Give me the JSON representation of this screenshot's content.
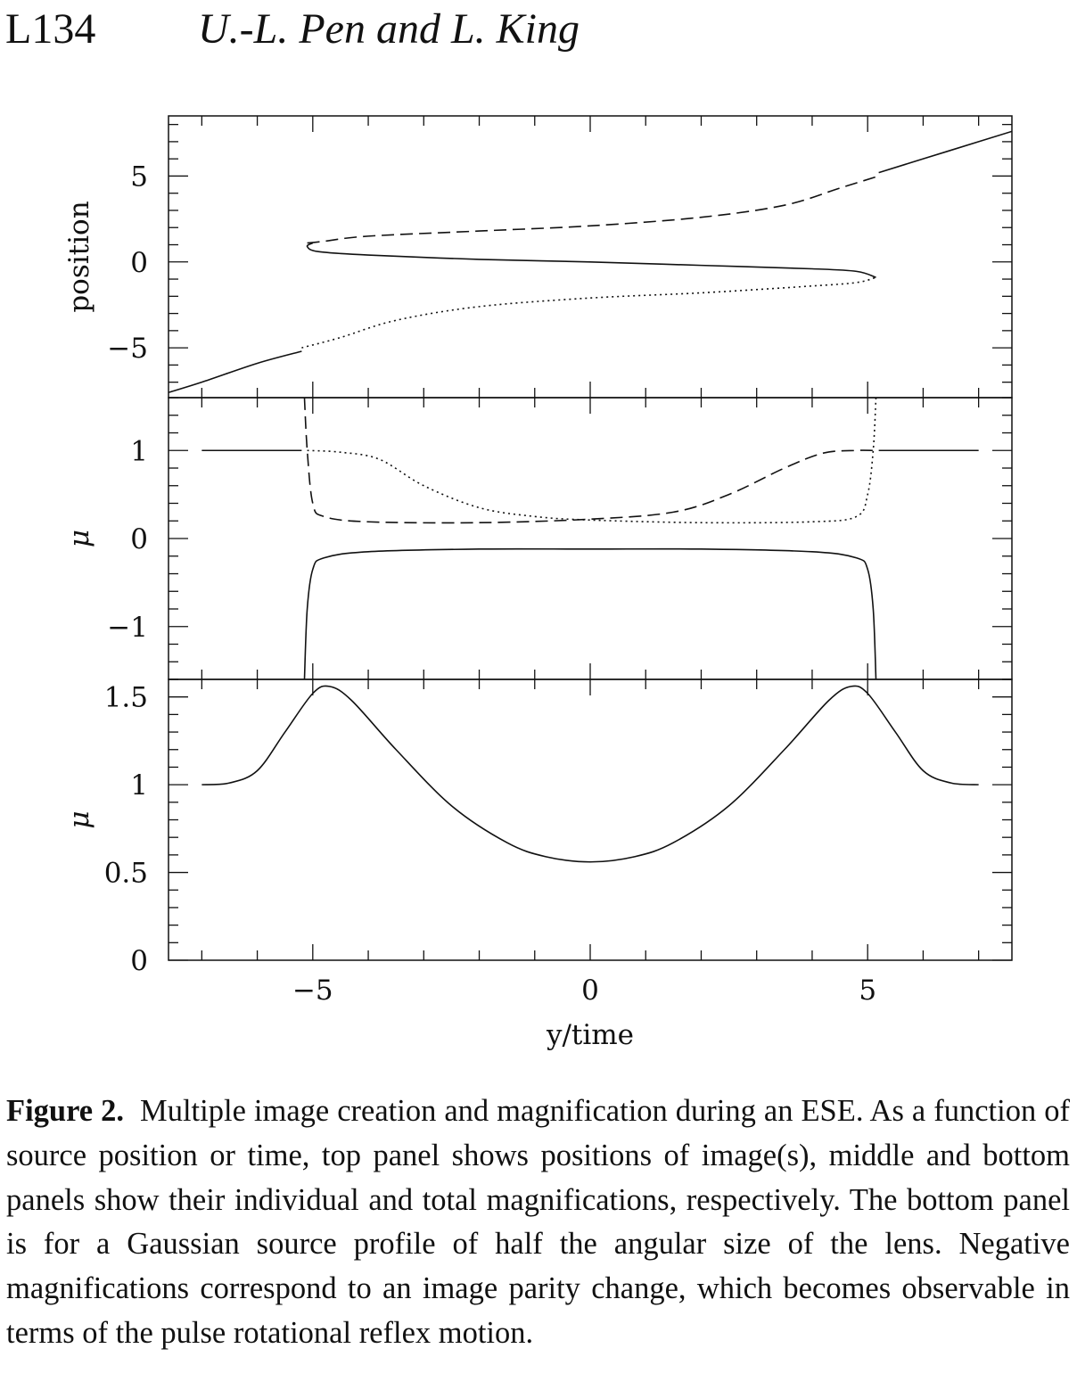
{
  "header": {
    "page_number": "L134",
    "authors": "U.-L. Pen and L. King"
  },
  "caption": {
    "label": "Figure 2.",
    "text": "Multiple image creation and magnification during an ESE. As a function of source position or time, top panel shows positions of image(s), middle and bottom panels show their individual and total magnifications, respectively. The bottom panel is for a Gaussian source profile of half the angular size of the lens. Negative magnifications correspond to an image parity change, which becomes observable in terms of the pulse rotational reflex motion."
  },
  "chart_data": [
    {
      "type": "line",
      "panel": "top",
      "xlabel": "",
      "ylabel": "position",
      "xlim": [
        -7.6,
        7.6
      ],
      "ylim": [
        -7.9,
        8.5
      ],
      "yticks": [
        -5,
        0,
        5
      ],
      "yticklabels": [
        "−5",
        "0",
        "5"
      ],
      "grid": false,
      "series": [
        {
          "style": "solid",
          "x": [
            -7.6,
            -7.0,
            -6.0,
            -5.2
          ],
          "y": [
            -7.6,
            -7.0,
            -5.9,
            -5.2
          ]
        },
        {
          "style": "solid",
          "x": [
            -5.0,
            -5.1,
            -4.9,
            -4.0,
            -2.0,
            0.0,
            2.0,
            4.0,
            4.8,
            5.15
          ],
          "y": [
            1.1,
            0.9,
            0.6,
            0.4,
            0.15,
            0.0,
            -0.2,
            -0.4,
            -0.55,
            -0.9
          ]
        },
        {
          "style": "dashed",
          "x": [
            -5.1,
            -4.8,
            -4.0,
            -2.0,
            0.0,
            2.0,
            3.5,
            4.5,
            5.2
          ],
          "y": [
            1.1,
            1.2,
            1.5,
            1.8,
            2.1,
            2.6,
            3.3,
            4.3,
            5.0
          ]
        },
        {
          "style": "solid",
          "x": [
            5.2,
            6.0,
            7.0,
            7.6
          ],
          "y": [
            5.2,
            6.0,
            7.0,
            7.6
          ]
        },
        {
          "style": "dotted",
          "x": [
            -5.2,
            -4.5,
            -3.5,
            -2.0,
            0.0,
            2.0,
            4.0,
            4.8,
            5.15
          ],
          "y": [
            -5.0,
            -4.4,
            -3.4,
            -2.6,
            -2.1,
            -1.8,
            -1.4,
            -1.2,
            -0.9
          ]
        }
      ]
    },
    {
      "type": "line",
      "panel": "middle",
      "xlabel": "",
      "ylabel": "μ",
      "xlim": [
        -7.6,
        7.6
      ],
      "ylim": [
        -1.6,
        1.6
      ],
      "yticks": [
        -1,
        0,
        1
      ],
      "yticklabels": [
        "−1",
        "0",
        "1"
      ],
      "grid": false,
      "series": [
        {
          "style": "solid",
          "x": [
            -7.0,
            -5.2
          ],
          "y": [
            1.0,
            1.0
          ]
        },
        {
          "style": "solid",
          "x": [
            5.2,
            7.0
          ],
          "y": [
            1.0,
            1.0
          ]
        },
        {
          "style": "dashed",
          "x": [
            -5.15,
            -5.1,
            -5.0,
            -4.8,
            -4.0,
            -2.0,
            0.0,
            1.5,
            2.5,
            3.5,
            4.2,
            4.8,
            5.1
          ],
          "y": [
            1.6,
            1.0,
            0.4,
            0.25,
            0.19,
            0.18,
            0.22,
            0.3,
            0.5,
            0.8,
            0.97,
            1.0,
            1.0
          ]
        },
        {
          "style": "dotted",
          "x": [
            -5.1,
            -4.5,
            -3.8,
            -3.0,
            -2.0,
            -1.0,
            0.0,
            2.0,
            4.0,
            4.8,
            5.0,
            5.1,
            5.15
          ],
          "y": [
            1.0,
            0.98,
            0.9,
            0.6,
            0.35,
            0.25,
            0.21,
            0.18,
            0.19,
            0.25,
            0.5,
            1.0,
            1.6
          ]
        },
        {
          "style": "solid",
          "x": [
            -5.15,
            -5.1,
            -5.0,
            -4.8,
            -4.0,
            -2.0,
            0.0,
            2.0,
            4.0,
            4.8,
            5.0,
            5.1,
            5.15
          ],
          "y": [
            -1.6,
            -0.8,
            -0.35,
            -0.22,
            -0.15,
            -0.12,
            -0.12,
            -0.12,
            -0.15,
            -0.22,
            -0.35,
            -0.8,
            -1.6
          ]
        }
      ]
    },
    {
      "type": "line",
      "panel": "bottom",
      "xlabel": "y/time",
      "ylabel": "μ",
      "xlim": [
        -7.6,
        7.6
      ],
      "ylim": [
        0,
        1.6
      ],
      "yticks": [
        0,
        0.5,
        1,
        1.5
      ],
      "yticklabels": [
        "0",
        "0.5",
        "1",
        "1.5"
      ],
      "xticks": [
        -5,
        0,
        5
      ],
      "xticklabels": [
        "−5",
        "0",
        "5"
      ],
      "grid": false,
      "series": [
        {
          "style": "solid",
          "x": [
            -7.0,
            -6.5,
            -6.0,
            -5.5,
            -5.0,
            -4.7,
            -4.3,
            -3.5,
            -2.5,
            -1.5,
            -0.8,
            0.0,
            0.8,
            1.5,
            2.5,
            3.5,
            4.3,
            4.7,
            5.0,
            5.5,
            6.0,
            6.5,
            7.0
          ],
          "y": [
            1.0,
            1.01,
            1.08,
            1.3,
            1.52,
            1.56,
            1.48,
            1.2,
            0.88,
            0.67,
            0.59,
            0.56,
            0.59,
            0.67,
            0.88,
            1.2,
            1.48,
            1.56,
            1.52,
            1.3,
            1.08,
            1.01,
            1.0
          ]
        }
      ]
    }
  ]
}
